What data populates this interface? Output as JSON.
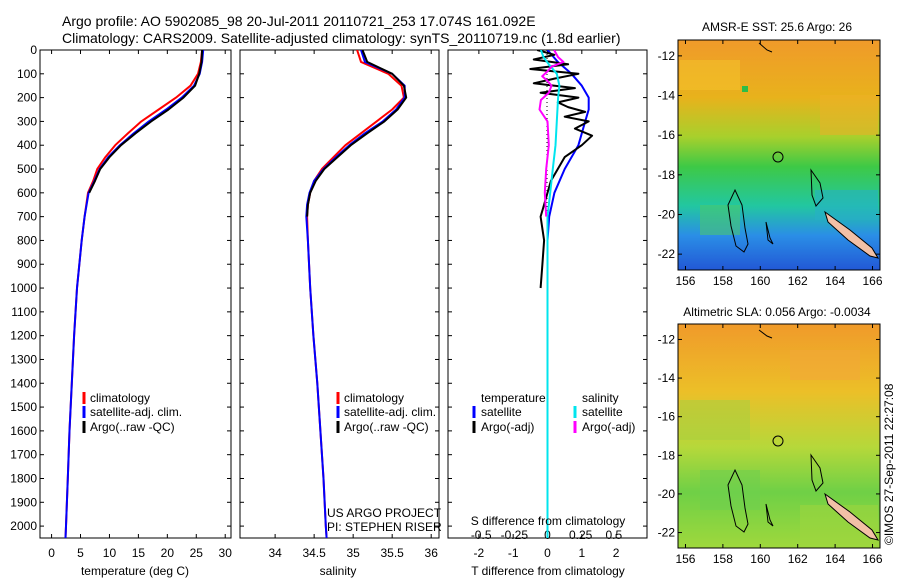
{
  "header": {
    "line1": "Argo profile: AO 5902085_98 20-Jul-2011 20110721_253 17.074S 161.092E",
    "line2": "Climatology: CARS2009. Satellite-adjusted climatology: synTS_20110719.nc (1.8d earlier)"
  },
  "depth_ticks": [
    0,
    100,
    200,
    300,
    400,
    500,
    600,
    700,
    800,
    900,
    1000,
    1100,
    1200,
    1300,
    1400,
    1500,
    1600,
    1700,
    1800,
    1900,
    2000
  ],
  "colors": {
    "climatology": "#ff0000",
    "satellite": "#0000ff",
    "argo": "#000000",
    "sal_satellite": "#00e5ee",
    "sal_argo": "#ff00ff"
  },
  "chart_data": [
    {
      "type": "line",
      "xlabel": "temperature (deg C)",
      "xticks": [
        "0",
        "5",
        "10",
        "15",
        "20",
        "25",
        "30"
      ],
      "xlim": [
        -2,
        31
      ],
      "ylim": [
        0,
        2050
      ],
      "legend": [
        "climatology",
        "satellite-adj. clim.",
        "Argo(..raw -QC)"
      ],
      "series": [
        {
          "name": "climatology",
          "depth": [
            0,
            50,
            100,
            150,
            200,
            250,
            300,
            350,
            400,
            450,
            500,
            550,
            600,
            700,
            800,
            1000,
            1200,
            1400,
            1600,
            1800,
            2000,
            2050
          ],
          "values": [
            26.0,
            25.8,
            25.3,
            24.0,
            21.5,
            18.5,
            15.5,
            13.2,
            11.0,
            9.3,
            7.9,
            7.2,
            6.3,
            5.7,
            5.2,
            4.4,
            3.9,
            3.5,
            3.1,
            2.8,
            2.5,
            2.4
          ]
        },
        {
          "name": "satellite-adj. clim.",
          "depth": [
            0,
            50,
            100,
            150,
            200,
            250,
            300,
            350,
            400,
            450,
            500,
            550,
            600,
            700,
            800,
            1000,
            1200,
            1400,
            1600,
            1800,
            2000,
            2050
          ],
          "values": [
            26.2,
            26.0,
            25.6,
            24.6,
            22.5,
            19.8,
            16.8,
            14.2,
            11.8,
            9.8,
            8.3,
            7.4,
            6.4,
            5.7,
            5.2,
            4.4,
            3.9,
            3.5,
            3.1,
            2.8,
            2.5,
            2.4
          ]
        },
        {
          "name": "Argo(..raw -QC)",
          "depth": [
            0,
            50,
            100,
            150,
            200,
            250,
            300,
            350,
            400,
            450,
            500,
            550,
            600
          ],
          "values": [
            26.0,
            25.9,
            25.5,
            24.8,
            22.8,
            20.2,
            17.2,
            14.5,
            12.0,
            10.0,
            8.4,
            7.5,
            6.5
          ]
        }
      ]
    },
    {
      "type": "line",
      "xlabel": "salinity",
      "xticks": [
        "34",
        "34.5",
        "35",
        "35.5",
        "36"
      ],
      "xlim": [
        33.55,
        36.1
      ],
      "ylim": [
        0,
        2050
      ],
      "legend": [
        "climatology",
        "satellite-adj. clim.",
        "Argo(..raw -QC)"
      ],
      "annotation": [
        "US ARGO PROJECT",
        "PI: STEPHEN RISER"
      ],
      "series": [
        {
          "name": "climatology",
          "depth": [
            0,
            50,
            100,
            150,
            200,
            250,
            300,
            350,
            400,
            450,
            500,
            550,
            600,
            650,
            700,
            800,
            1000,
            1200,
            1400,
            1600,
            1800,
            2000,
            2050
          ],
          "values": [
            35.05,
            35.1,
            35.45,
            35.62,
            35.65,
            35.5,
            35.3,
            35.1,
            34.9,
            34.75,
            34.6,
            34.5,
            34.45,
            34.42,
            34.41,
            34.42,
            34.45,
            34.49,
            34.54,
            34.58,
            34.62,
            34.65,
            34.66
          ]
        },
        {
          "name": "satellite-adj. clim.",
          "depth": [
            0,
            50,
            100,
            150,
            200,
            250,
            300,
            350,
            400,
            450,
            500,
            550,
            600,
            650,
            700,
            800,
            1000,
            1200,
            1400,
            1600,
            1800,
            2000,
            2050
          ],
          "values": [
            35.1,
            35.15,
            35.5,
            35.66,
            35.66,
            35.55,
            35.38,
            35.15,
            34.95,
            34.78,
            34.62,
            34.5,
            34.44,
            34.41,
            34.4,
            34.42,
            34.45,
            34.49,
            34.54,
            34.58,
            34.62,
            34.65,
            34.66
          ]
        },
        {
          "name": "Argo(..raw -QC)",
          "depth": [
            0,
            50,
            100,
            150,
            200,
            250,
            300,
            350,
            400,
            450,
            500,
            550,
            600,
            650,
            700
          ],
          "values": [
            35.12,
            35.18,
            35.5,
            35.65,
            35.68,
            35.57,
            35.4,
            35.18,
            34.97,
            34.8,
            34.63,
            34.52,
            34.45,
            34.42,
            34.41
          ]
        }
      ]
    },
    {
      "type": "line",
      "xlabel_top": "S difference from climatology",
      "xticks_top": [
        "-0.5",
        "-0.25",
        "0",
        "0.25",
        "0.5"
      ],
      "xlabel": "T difference from climatology",
      "xticks": [
        "-2",
        "-1",
        "0",
        "1",
        "2"
      ],
      "xlim": [
        -2.9,
        2.9
      ],
      "ylim": [
        0,
        2050
      ],
      "legend_temperature": [
        "temperature",
        "satellite",
        "Argo(-adj)"
      ],
      "legend_salinity": [
        "salinity",
        "satellite",
        "Argo(-adj)"
      ],
      "series": [
        {
          "name": "satellite",
          "depth": [
            0,
            50,
            100,
            150,
            200,
            250,
            300,
            400,
            500,
            600,
            700,
            800,
            1000,
            1200,
            1400,
            1600,
            1800,
            2000,
            2050
          ],
          "values": [
            0.0,
            0.3,
            0.7,
            1.0,
            1.2,
            1.2,
            1.1,
            0.9,
            0.5,
            0.2,
            0.05,
            0.0,
            0.0,
            0.0,
            0.0,
            0.0,
            0.0,
            0.0,
            0.0
          ]
        },
        {
          "name": "Argo(-adj)",
          "depth": [
            0,
            20,
            40,
            60,
            80,
            100,
            120,
            140,
            160,
            180,
            200,
            220,
            240,
            260,
            280,
            300,
            330,
            360,
            400,
            450,
            500,
            550,
            600,
            650,
            700,
            800,
            900,
            1000
          ],
          "values": [
            -0.3,
            0.2,
            -0.4,
            0.6,
            -0.5,
            0.9,
            0.2,
            -0.4,
            0.8,
            -0.2,
            0.9,
            0.3,
            0.6,
            1.1,
            0.5,
            1.2,
            0.8,
            1.3,
            1.0,
            0.5,
            0.3,
            0.1,
            0.0,
            -0.1,
            -0.2,
            -0.1,
            -0.15,
            -0.2
          ]
        },
        {
          "name": "sal-satellite",
          "depth": [
            0,
            30,
            60,
            100,
            150,
            200,
            300,
            400,
            500,
            600,
            700,
            800,
            1000,
            1400,
            1800,
            2050
          ],
          "values": [
            -0.05,
            -0.03,
            0.01,
            0.07,
            0.09,
            0.08,
            0.07,
            0.06,
            0.04,
            0.02,
            0.0,
            0.0,
            0.0,
            0.0,
            0.0,
            0.0
          ]
        },
        {
          "name": "sal-Argo(-adj)",
          "depth": [
            0,
            30,
            50,
            70,
            90,
            110,
            130,
            150,
            180,
            210,
            250,
            300,
            400,
            500,
            600,
            700
          ],
          "values": [
            0.05,
            0.08,
            0.12,
            0.03,
            0.0,
            -0.04,
            0.0,
            0.03,
            0.01,
            -0.05,
            -0.06,
            0.0,
            0.01,
            -0.01,
            -0.02,
            -0.01
          ]
        }
      ]
    }
  ],
  "maps": [
    {
      "title": "AMSR-E SST: 25.6 Argo: 26",
      "yticks": [
        "-12",
        "-14",
        "-16",
        "-18",
        "-20",
        "-22"
      ],
      "xticks": [
        "156",
        "158",
        "160",
        "162",
        "164",
        "166"
      ]
    },
    {
      "title": "Altimetric SLA: 0.056 Argo: -0.0034",
      "yticks": [
        "-12",
        "-14",
        "-16",
        "-18",
        "-20",
        "-22"
      ],
      "xticks": [
        "156",
        "158",
        "160",
        "162",
        "164",
        "166"
      ]
    }
  ],
  "side_label": "©IMOS 27-Sep-2011 22:27:08"
}
